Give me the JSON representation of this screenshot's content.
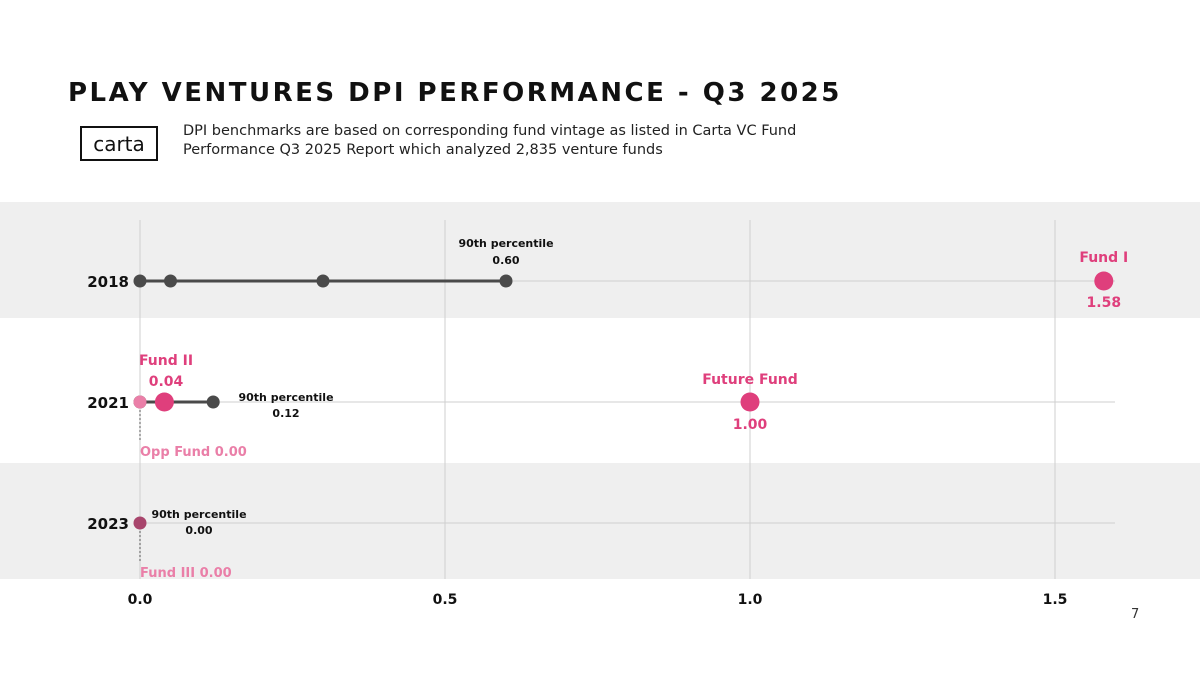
{
  "header": {
    "title": "PLAY VENTURES DPI PERFORMANCE - Q3 2025",
    "logo_text": "carta",
    "subtitle": "DPI benchmarks are based on corresponding fund vintage as listed in Carta VC Fund Performance Q3 2025 Report which analyzed 2,835 venture funds"
  },
  "page_number": "7",
  "colors": {
    "benchmark": "#4a4a4a",
    "fund": "#df3f7c",
    "opp_fund": "#ea7fa8",
    "fund_2023": "#a8456c",
    "band": "#efefef",
    "grid": "#cfcfcf"
  },
  "chart_data": {
    "type": "scatter",
    "title": "",
    "xlabel": "",
    "ylabel": "",
    "xlim": [
      0,
      1.6
    ],
    "x_ticks": [
      {
        "value": 0.0,
        "label": "0.0"
      },
      {
        "value": 0.5,
        "label": "0.5"
      },
      {
        "value": 1.0,
        "label": "1.0"
      },
      {
        "value": 1.5,
        "label": "1.5"
      }
    ],
    "grid": true,
    "categories": [
      "2018",
      "2021",
      "2023"
    ],
    "rows": [
      {
        "label": "2018",
        "band": true,
        "benchmark_points": [
          0.0,
          0.05,
          0.3,
          0.6
        ],
        "percentile_label": "90th percentile",
        "percentile_value": 0.6,
        "percentile_value_label": "0.60",
        "funds": [
          {
            "name": "Fund I",
            "value": 1.58,
            "value_label": "1.58",
            "color": "#df3f7c",
            "size": "large"
          }
        ]
      },
      {
        "label": "2021",
        "band": false,
        "benchmark_points": [
          0.0,
          0.12
        ],
        "percentile_label": "90th percentile",
        "percentile_value": 0.12,
        "percentile_value_label": "0.12",
        "funds": [
          {
            "name": "Fund II",
            "value": 0.04,
            "value_label": "0.04",
            "color": "#df3f7c",
            "size": "large"
          },
          {
            "name": "Future Fund",
            "value": 1.0,
            "value_label": "1.00",
            "color": "#df3f7c",
            "size": "large"
          },
          {
            "name": "Opp Fund",
            "value": 0.0,
            "value_label": "0.00",
            "color": "#ea7fa8",
            "size": "small",
            "combined_label": "Opp Fund 0.00"
          }
        ]
      },
      {
        "label": "2023",
        "band": true,
        "benchmark_points": [
          0.0
        ],
        "percentile_label": "90th percentile",
        "percentile_value": 0.0,
        "percentile_value_label": "0.00",
        "funds": [
          {
            "name": "Fund III",
            "value": 0.0,
            "value_label": "0.00",
            "color": "#a8456c",
            "size": "small",
            "combined_label": "Fund III 0.00"
          }
        ]
      }
    ]
  }
}
